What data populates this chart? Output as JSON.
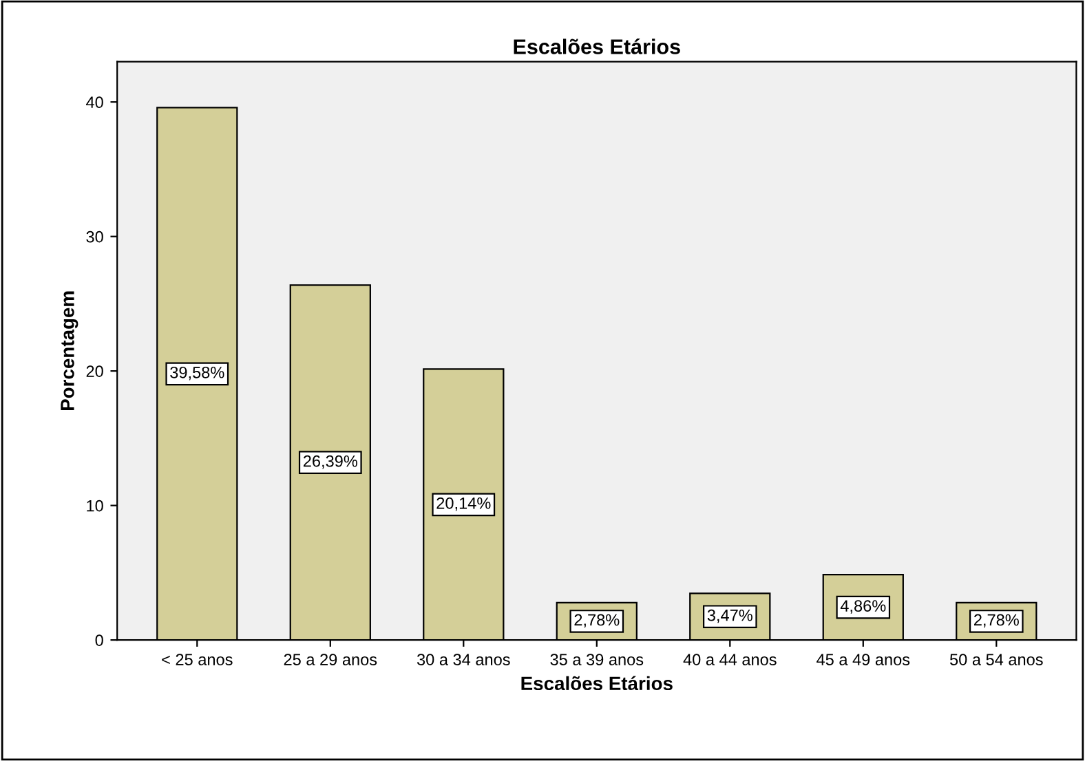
{
  "chart_data": {
    "type": "bar",
    "title": "Escalões Etários",
    "xlabel": "Escalões Etários",
    "ylabel": "Porcentagem",
    "categories": [
      "< 25 anos",
      "25 a 29 anos",
      "30 a 34 anos",
      "35 a 39 anos",
      "40 a 44 anos",
      "45 a 49 anos",
      "50 a 54 anos"
    ],
    "values": [
      39.58,
      26.39,
      20.14,
      2.78,
      3.47,
      4.86,
      2.78
    ],
    "value_labels": [
      "39,58%",
      "26,39%",
      "20,14%",
      "2,78%",
      "3,47%",
      "4,86%",
      "2,78%"
    ],
    "color": "#d4cf98",
    "ylim": [
      0,
      43
    ],
    "yticks": [
      0,
      10,
      20,
      30,
      40
    ],
    "grid": false,
    "legend": false
  }
}
